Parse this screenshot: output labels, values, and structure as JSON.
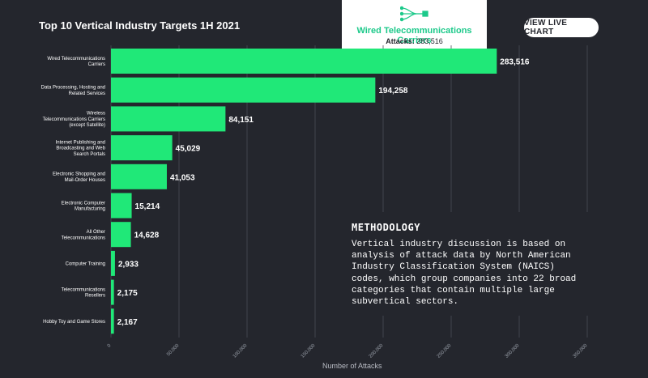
{
  "header": {
    "title": "Top 10 Vertical Industry Targets 1H 2021",
    "live_button": "VIEW LIVE CHART"
  },
  "tooltip": {
    "icon": "network-cable-icon",
    "title": "Wired Telecommunications Carriers",
    "attacks_label": "Attacks:",
    "attacks_value": "283,516"
  },
  "methodology": {
    "title": "METHODOLOGY",
    "lines": [
      "Vertical industry discussion is based on",
      "analysis of attack data by North American",
      "Industry Classification System (NAICS)",
      "codes, which group companies into 22 broad",
      "categories that contain multiple large",
      "subvertical sectors."
    ]
  },
  "colors": {
    "background": "#24262d",
    "bar": "#20e878",
    "accent": "#1cc98a",
    "grid": "#4a4d56"
  },
  "chart_data": {
    "type": "bar",
    "orientation": "horizontal",
    "title": "Top 10 Vertical Industry Targets 1H 2021",
    "xlabel": "Number of Attacks",
    "ylabel": "",
    "xlim": [
      0,
      350000
    ],
    "x_ticks": [
      "0",
      "50,000",
      "100,000",
      "150,000",
      "200,000",
      "250,000",
      "300,000",
      "350,000"
    ],
    "grid": true,
    "categories": [
      [
        "Wired Telecommunications",
        "Carriers"
      ],
      [
        "Data Processing, Hosting and",
        "Related Services"
      ],
      [
        "Wireless",
        "Telecommunications Carriers",
        "(except Satellite)"
      ],
      [
        "Internet Publishing and",
        "Broadcasting and Web",
        "Search Portals"
      ],
      [
        "Electronic Shopping and",
        "Mail-Order Houses"
      ],
      [
        "Electronic Computer",
        "Manufacturing"
      ],
      [
        "All Other",
        "Telecommunications"
      ],
      [
        "Computer Training"
      ],
      [
        "Telecommunications",
        "Resellers"
      ],
      [
        "Hobby Toy and Game Stores"
      ]
    ],
    "values": [
      283516,
      194258,
      84151,
      45029,
      41053,
      15214,
      14628,
      2933,
      2175,
      2167
    ],
    "value_labels": [
      "283,516",
      "194,258",
      "84,151",
      "45,029",
      "41,053",
      "15,214",
      "14,628",
      "2,933",
      "2,175",
      "2,167"
    ]
  }
}
